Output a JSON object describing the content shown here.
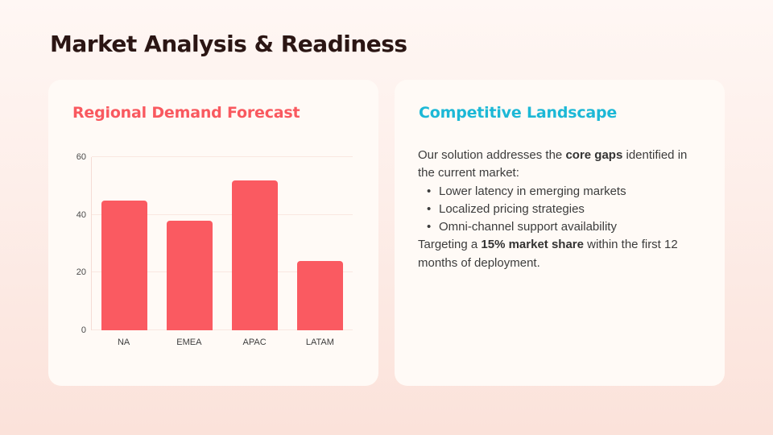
{
  "slide": {
    "title": "Market Analysis & Readiness"
  },
  "left_card": {
    "heading": "Regional Demand Forecast"
  },
  "right_card": {
    "heading": "Competitive Landscape",
    "intro_prefix": "Our solution addresses the ",
    "intro_bold": "core gaps",
    "intro_suffix": " identified in the current market:",
    "bullets": [
      "Lower latency in emerging markets",
      "Localized pricing strategies",
      "Omni-channel support availability"
    ],
    "closing_prefix": "Targeting a ",
    "closing_bold": "15% market share",
    "closing_suffix": " within the first 12 months of deployment."
  },
  "chart_data": {
    "type": "bar",
    "title": "Regional Demand Forecast",
    "categories": [
      "NA",
      "EMEA",
      "APAC",
      "LATAM"
    ],
    "values": [
      45,
      38,
      52,
      24
    ],
    "xlabel": "",
    "ylabel": "",
    "ylim": [
      0,
      60
    ],
    "yticks": [
      0,
      20,
      40,
      60
    ],
    "grid": true,
    "legend": false,
    "bar_color": "#FA5A61"
  },
  "colors": {
    "accent_coral": "#F9595F",
    "accent_teal": "#1CB8D6",
    "title_text": "#2B1614",
    "body_text": "#3C3C3C",
    "card_background": "#FFFAF6"
  }
}
